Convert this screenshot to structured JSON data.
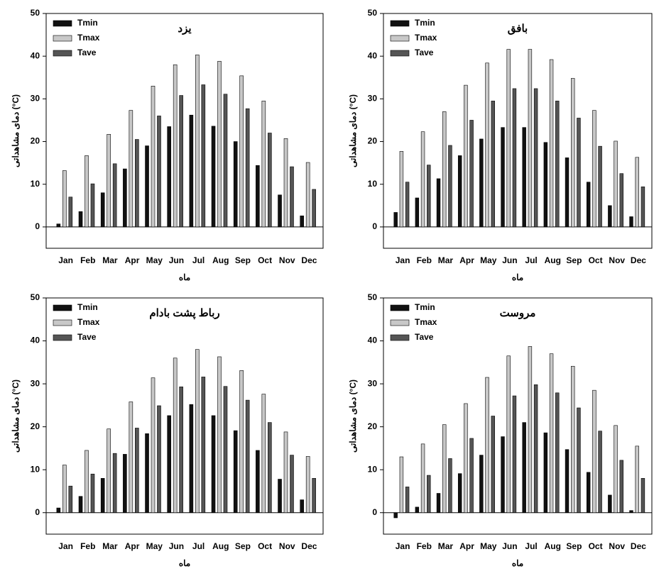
{
  "chart_data": [
    {
      "type": "bar",
      "title": "یزد",
      "xlabel": "ماه",
      "ylabel": "دمای مشاهداتی (°C)",
      "categories": [
        "Jan",
        "Feb",
        "Mar",
        "Apr",
        "May",
        "Jun",
        "Jul",
        "Aug",
        "Sep",
        "Oct",
        "Nov",
        "Dec"
      ],
      "series": [
        {
          "name": "Tmin",
          "color": "#111111",
          "values": [
            0.7,
            3.6,
            8,
            13.6,
            19,
            23.5,
            26.2,
            23.6,
            20,
            14.4,
            7.5,
            2.6
          ]
        },
        {
          "name": "Tmax",
          "color": "#c8c8c8",
          "values": [
            13.2,
            16.7,
            21.7,
            27.3,
            33,
            38,
            40.3,
            38.8,
            35.4,
            29.5,
            20.7,
            15.1
          ]
        },
        {
          "name": "Tave",
          "color": "#555555",
          "values": [
            7,
            10.1,
            14.8,
            20.5,
            26,
            30.8,
            33.3,
            31.1,
            27.7,
            22,
            14.1,
            8.8
          ]
        }
      ],
      "ylim": [
        -5,
        50
      ],
      "yticks": [
        0,
        10,
        20,
        30,
        40,
        50
      ],
      "grid": false,
      "legend": "upper left"
    },
    {
      "type": "bar",
      "title": "بافق",
      "xlabel": "ماه",
      "ylabel": "دمای مشاهداتی (°C)",
      "categories": [
        "Jan",
        "Feb",
        "Mar",
        "Apr",
        "May",
        "Jun",
        "Jul",
        "Aug",
        "Sep",
        "Oct",
        "Nov",
        "Dec"
      ],
      "series": [
        {
          "name": "Tmin",
          "color": "#111111",
          "values": [
            3.4,
            6.8,
            11.3,
            16.7,
            20.6,
            23.3,
            23.3,
            19.8,
            16.2,
            10.5,
            5,
            2.4
          ]
        },
        {
          "name": "Tmax",
          "color": "#c8c8c8",
          "values": [
            17.7,
            22.3,
            27,
            33.2,
            38.4,
            41.6,
            41.6,
            39.2,
            34.8,
            27.3,
            20.1,
            16.3
          ]
        },
        {
          "name": "Tave",
          "color": "#555555",
          "values": [
            10.5,
            14.5,
            19.1,
            25,
            29.5,
            32.4,
            32.4,
            29.5,
            25.5,
            18.9,
            12.5,
            9.4
          ]
        }
      ],
      "ylim": [
        -5,
        50
      ],
      "yticks": [
        0,
        10,
        20,
        30,
        40,
        50
      ],
      "grid": false,
      "legend": "upper left"
    },
    {
      "type": "bar",
      "title": "رباط پشت بادام",
      "xlabel": "ماه",
      "ylabel": "دمای مشاهداتی (°C)",
      "categories": [
        "Jan",
        "Feb",
        "Mar",
        "Apr",
        "May",
        "Jun",
        "Jul",
        "Aug",
        "Sep",
        "Oct",
        "Nov",
        "Dec"
      ],
      "series": [
        {
          "name": "Tmin",
          "color": "#111111",
          "values": [
            1.1,
            3.8,
            8,
            13.6,
            18.4,
            22.6,
            25.2,
            22.6,
            19.1,
            14.5,
            7.8,
            3
          ]
        },
        {
          "name": "Tmax",
          "color": "#c8c8c8",
          "values": [
            11.1,
            14.5,
            19.5,
            25.8,
            31.4,
            36,
            38,
            36.3,
            33.1,
            27.6,
            18.8,
            13.1
          ]
        },
        {
          "name": "Tave",
          "color": "#555555",
          "values": [
            6.2,
            9,
            13.8,
            19.7,
            24.9,
            29.3,
            31.6,
            29.4,
            26.2,
            21,
            13.4,
            8
          ]
        }
      ],
      "ylim": [
        -5,
        50
      ],
      "yticks": [
        0,
        10,
        20,
        30,
        40,
        50
      ],
      "grid": false,
      "legend": "upper left"
    },
    {
      "type": "bar",
      "title": "مروست",
      "xlabel": "ماه",
      "ylabel": "دمای مشاهداتی (°C)",
      "categories": [
        "Jan",
        "Feb",
        "Mar",
        "Apr",
        "May",
        "Jun",
        "Jul",
        "Aug",
        "Sep",
        "Oct",
        "Nov",
        "Dec"
      ],
      "series": [
        {
          "name": "Tmin",
          "color": "#111111",
          "values": [
            -1.2,
            1.3,
            4.5,
            9.1,
            13.4,
            17.7,
            21,
            18.6,
            14.7,
            9.4,
            4.1,
            0.5
          ]
        },
        {
          "name": "Tmax",
          "color": "#c8c8c8",
          "values": [
            13,
            16,
            20.5,
            25.4,
            31.5,
            36.5,
            38.7,
            37,
            34.1,
            28.5,
            20.3,
            15.5
          ]
        },
        {
          "name": "Tave",
          "color": "#555555",
          "values": [
            6,
            8.7,
            12.6,
            17.3,
            22.5,
            27.2,
            29.8,
            27.9,
            24.4,
            19,
            12.2,
            8
          ]
        }
      ],
      "ylim": [
        -5,
        50
      ],
      "yticks": [
        0,
        10,
        20,
        30,
        40,
        50
      ],
      "grid": false,
      "legend": "upper left"
    }
  ]
}
